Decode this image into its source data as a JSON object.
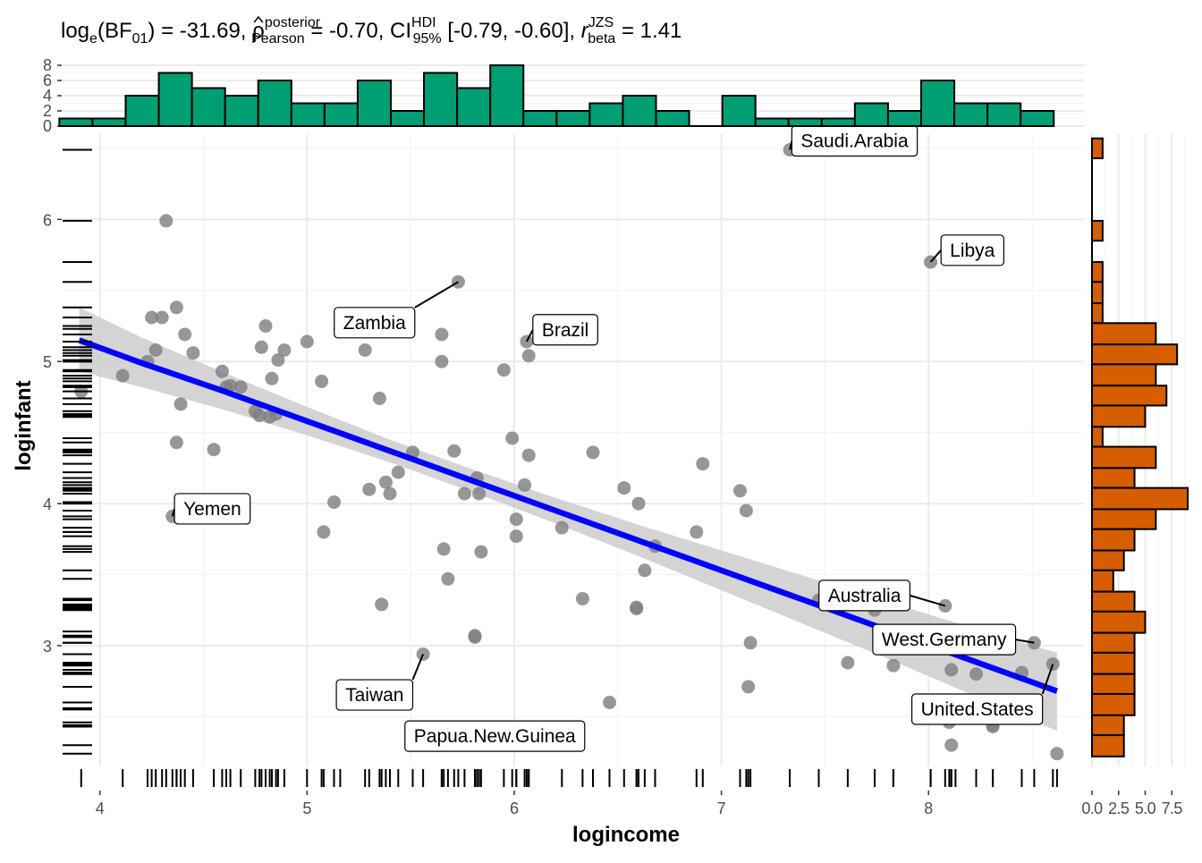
{
  "chart_data": {
    "type": "scatter",
    "title": {
      "logbf_label": "log",
      "logbf_sub": "e",
      "logbf_bf": "BF",
      "logbf_bfsub": "01",
      "logbf_value": " = -31.69, ",
      "rho_symbol": "ρ",
      "rho_sup": "posterior",
      "rho_sub": "Pearson",
      "rho_value": " = -0.70, CI",
      "ci_sup": "HDI",
      "ci_sub": "95%",
      "ci_value": " [-0.79, -0.60], ",
      "r_symbol": "r",
      "r_sup": "JZS",
      "r_sub": "beta",
      "r_value": " = 1.41"
    },
    "xlabel": "logincome",
    "ylabel": "loginfant",
    "xlim": [
      3.82,
      8.75
    ],
    "ylim": [
      2.15,
      6.6
    ],
    "x_ticks": [
      4,
      5,
      6,
      7,
      8
    ],
    "y_ticks": [
      3,
      4,
      5,
      6
    ],
    "grid": true,
    "point_color": "#808080",
    "line_color": "#0000ff",
    "ribbon_color": "#cccccc",
    "fit": {
      "x": [
        3.9,
        4.2,
        4.6,
        5.0,
        5.4,
        5.8,
        6.2,
        6.6,
        7.0,
        7.4,
        7.8,
        8.2,
        8.62
      ],
      "y": [
        5.15,
        4.99,
        4.79,
        4.58,
        4.37,
        4.16,
        3.95,
        3.74,
        3.53,
        3.32,
        3.11,
        2.9,
        2.68
      ],
      "lower": [
        4.93,
        4.82,
        4.66,
        4.48,
        4.29,
        4.08,
        3.86,
        3.63,
        3.39,
        3.15,
        2.91,
        2.66,
        2.4
      ],
      "upper": [
        5.38,
        5.17,
        4.92,
        4.68,
        4.45,
        4.24,
        4.04,
        3.85,
        3.67,
        3.49,
        3.31,
        3.13,
        2.95
      ]
    },
    "points": [
      [
        3.91,
        4.79
      ],
      [
        4.11,
        4.9
      ],
      [
        4.23,
        5.0
      ],
      [
        4.25,
        5.31
      ],
      [
        4.27,
        5.08
      ],
      [
        4.3,
        5.31
      ],
      [
        4.32,
        5.99
      ],
      [
        4.35,
        3.91
      ],
      [
        4.37,
        5.38
      ],
      [
        4.37,
        4.43
      ],
      [
        4.39,
        4.7
      ],
      [
        4.41,
        5.19
      ],
      [
        4.45,
        5.06
      ],
      [
        4.55,
        4.38
      ],
      [
        4.59,
        4.93
      ],
      [
        4.61,
        4.82
      ],
      [
        4.63,
        4.83
      ],
      [
        4.68,
        4.82
      ],
      [
        4.75,
        4.65
      ],
      [
        4.77,
        4.62
      ],
      [
        4.78,
        5.1
      ],
      [
        4.8,
        5.25
      ],
      [
        4.82,
        4.61
      ],
      [
        4.83,
        4.88
      ],
      [
        4.85,
        4.63
      ],
      [
        4.86,
        5.01
      ],
      [
        4.89,
        5.08
      ],
      [
        5.0,
        5.14
      ],
      [
        5.07,
        4.86
      ],
      [
        5.08,
        3.8
      ],
      [
        5.13,
        4.01
      ],
      [
        5.16,
        5.23
      ],
      [
        5.28,
        5.08
      ],
      [
        5.3,
        4.1
      ],
      [
        5.35,
        4.74
      ],
      [
        5.36,
        3.29
      ],
      [
        5.38,
        4.15
      ],
      [
        5.4,
        4.07
      ],
      [
        5.44,
        4.22
      ],
      [
        5.51,
        4.36
      ],
      [
        5.56,
        2.94
      ],
      [
        5.65,
        5.0
      ],
      [
        5.65,
        5.19
      ],
      [
        5.66,
        3.68
      ],
      [
        5.68,
        3.47
      ],
      [
        5.71,
        4.37
      ],
      [
        5.73,
        5.56
      ],
      [
        5.76,
        4.07
      ],
      [
        5.81,
        3.07
      ],
      [
        5.81,
        3.06
      ],
      [
        5.82,
        4.18
      ],
      [
        5.83,
        4.07
      ],
      [
        5.84,
        3.66
      ],
      [
        5.95,
        4.94
      ],
      [
        5.99,
        4.46
      ],
      [
        6.01,
        3.89
      ],
      [
        6.01,
        3.77
      ],
      [
        6.05,
        4.13
      ],
      [
        6.06,
        5.14
      ],
      [
        6.07,
        5.04
      ],
      [
        6.07,
        4.34
      ],
      [
        6.23,
        3.83
      ],
      [
        6.33,
        3.33
      ],
      [
        6.38,
        4.36
      ],
      [
        6.46,
        2.6
      ],
      [
        6.53,
        4.11
      ],
      [
        6.59,
        3.27
      ],
      [
        6.59,
        3.26
      ],
      [
        6.6,
        4.0
      ],
      [
        6.63,
        3.53
      ],
      [
        6.68,
        3.7
      ],
      [
        6.88,
        3.8
      ],
      [
        6.91,
        4.28
      ],
      [
        7.09,
        4.09
      ],
      [
        7.12,
        3.95
      ],
      [
        7.13,
        2.71
      ],
      [
        7.14,
        3.02
      ],
      [
        7.33,
        6.49
      ],
      [
        7.47,
        3.32
      ],
      [
        7.61,
        2.88
      ],
      [
        7.74,
        3.25
      ],
      [
        7.83,
        2.86
      ],
      [
        7.83,
        3.1
      ],
      [
        8.01,
        5.7
      ],
      [
        8.01,
        2.55
      ],
      [
        8.08,
        3.28
      ],
      [
        8.1,
        2.46
      ],
      [
        8.11,
        2.83
      ],
      [
        8.11,
        2.3
      ],
      [
        8.13,
        2.56
      ],
      [
        8.23,
        2.8
      ],
      [
        8.31,
        2.44
      ],
      [
        8.31,
        2.43
      ],
      [
        8.45,
        2.81
      ],
      [
        8.51,
        3.02
      ],
      [
        8.6,
        2.87
      ],
      [
        8.62,
        2.24
      ]
    ],
    "labels": [
      {
        "text": "Saudi.Arabia",
        "x": 7.33,
        "y": 6.49,
        "lx": 7.34,
        "ly": 6.66,
        "anchor": "left"
      },
      {
        "text": "Libya",
        "x": 8.01,
        "y": 5.7,
        "lx": 8.06,
        "ly": 5.89,
        "anchor": "left"
      },
      {
        "text": "Zambia",
        "x": 5.73,
        "y": 5.56,
        "lx": 5.52,
        "ly": 5.38,
        "anchor": "right"
      },
      {
        "text": "Brazil",
        "x": 6.06,
        "y": 5.14,
        "lx": 6.09,
        "ly": 5.33,
        "anchor": "left"
      },
      {
        "text": "Yemen",
        "x": 4.35,
        "y": 3.91,
        "lx": 4.36,
        "ly": 4.07,
        "anchor": "left"
      },
      {
        "text": "Australia",
        "x": 8.08,
        "y": 3.28,
        "lx": 7.91,
        "ly": 3.46,
        "anchor": "right"
      },
      {
        "text": "West.Germany",
        "x": 8.51,
        "y": 3.02,
        "lx": 8.42,
        "ly": 3.15,
        "anchor": "right"
      },
      {
        "text": "Taiwan",
        "x": 5.56,
        "y": 2.94,
        "lx": 5.51,
        "ly": 2.76,
        "anchor": "right"
      },
      {
        "text": "United.States",
        "x": 8.6,
        "y": 2.87,
        "lx": 8.55,
        "ly": 2.66,
        "anchor": "right"
      },
      {
        "text": "Papua.New.Guinea",
        "x": 6.18,
        "y": 2.3,
        "lx": 6.34,
        "ly": 2.47,
        "anchor": "right"
      }
    ],
    "x_hist": {
      "color": "#009e73",
      "y_ticks": [
        0,
        2,
        4,
        6,
        8
      ],
      "ymax": 8,
      "bins": [
        {
          "x0": 3.8,
          "x1": 3.96,
          "count": 1
        },
        {
          "x0": 3.96,
          "x1": 4.12,
          "count": 1
        },
        {
          "x0": 4.12,
          "x1": 4.28,
          "count": 4
        },
        {
          "x0": 4.28,
          "x1": 4.44,
          "count": 7
        },
        {
          "x0": 4.44,
          "x1": 4.6,
          "count": 5
        },
        {
          "x0": 4.6,
          "x1": 4.76,
          "count": 4
        },
        {
          "x0": 4.76,
          "x1": 4.92,
          "count": 6
        },
        {
          "x0": 4.92,
          "x1": 5.08,
          "count": 3
        },
        {
          "x0": 5.08,
          "x1": 5.24,
          "count": 3
        },
        {
          "x0": 5.24,
          "x1": 5.4,
          "count": 6
        },
        {
          "x0": 5.4,
          "x1": 5.56,
          "count": 2
        },
        {
          "x0": 5.56,
          "x1": 5.72,
          "count": 7
        },
        {
          "x0": 5.72,
          "x1": 5.88,
          "count": 5
        },
        {
          "x0": 5.88,
          "x1": 6.04,
          "count": 8
        },
        {
          "x0": 6.04,
          "x1": 6.2,
          "count": 2
        },
        {
          "x0": 6.2,
          "x1": 6.36,
          "count": 2
        },
        {
          "x0": 6.36,
          "x1": 6.52,
          "count": 3
        },
        {
          "x0": 6.52,
          "x1": 6.68,
          "count": 4
        },
        {
          "x0": 6.68,
          "x1": 6.84,
          "count": 2
        },
        {
          "x0": 6.84,
          "x1": 7.0,
          "count": 0
        },
        {
          "x0": 7.0,
          "x1": 7.16,
          "count": 4
        },
        {
          "x0": 7.16,
          "x1": 7.32,
          "count": 1
        },
        {
          "x0": 7.32,
          "x1": 7.48,
          "count": 1
        },
        {
          "x0": 7.48,
          "x1": 7.64,
          "count": 1
        },
        {
          "x0": 7.64,
          "x1": 7.8,
          "count": 3
        },
        {
          "x0": 7.8,
          "x1": 7.96,
          "count": 2
        },
        {
          "x0": 7.96,
          "x1": 8.12,
          "count": 6
        },
        {
          "x0": 8.12,
          "x1": 8.28,
          "count": 3
        },
        {
          "x0": 8.28,
          "x1": 8.44,
          "count": 3
        },
        {
          "x0": 8.44,
          "x1": 8.6,
          "count": 2
        }
      ]
    },
    "y_hist": {
      "color": "#d55e00",
      "x_tick_labels": [
        "0.0",
        "2.5",
        "5.0",
        "7.5"
      ],
      "x_ticks": [
        0,
        2.5,
        5.0,
        7.5
      ],
      "xmax": 9.5,
      "bins": [
        {
          "y0": 6.43,
          "y1": 6.57,
          "count": 1
        },
        {
          "y0": 6.29,
          "y1": 6.43,
          "count": 0
        },
        {
          "y0": 6.14,
          "y1": 6.29,
          "count": 0
        },
        {
          "y0": 5.99,
          "y1": 6.14,
          "count": 0
        },
        {
          "y0": 5.85,
          "y1": 5.99,
          "count": 1
        },
        {
          "y0": 5.7,
          "y1": 5.85,
          "count": 0
        },
        {
          "y0": 5.56,
          "y1": 5.7,
          "count": 1
        },
        {
          "y0": 5.41,
          "y1": 5.56,
          "count": 1
        },
        {
          "y0": 5.27,
          "y1": 5.41,
          "count": 1
        },
        {
          "y0": 5.12,
          "y1": 5.27,
          "count": 6
        },
        {
          "y0": 4.98,
          "y1": 5.12,
          "count": 8
        },
        {
          "y0": 4.83,
          "y1": 4.98,
          "count": 6
        },
        {
          "y0": 4.69,
          "y1": 4.83,
          "count": 7
        },
        {
          "y0": 4.54,
          "y1": 4.69,
          "count": 5
        },
        {
          "y0": 4.4,
          "y1": 4.54,
          "count": 1
        },
        {
          "y0": 4.25,
          "y1": 4.4,
          "count": 6
        },
        {
          "y0": 4.11,
          "y1": 4.25,
          "count": 4
        },
        {
          "y0": 3.96,
          "y1": 4.11,
          "count": 9
        },
        {
          "y0": 3.82,
          "y1": 3.96,
          "count": 6
        },
        {
          "y0": 3.67,
          "y1": 3.82,
          "count": 4
        },
        {
          "y0": 3.53,
          "y1": 3.67,
          "count": 3
        },
        {
          "y0": 3.38,
          "y1": 3.53,
          "count": 2
        },
        {
          "y0": 3.24,
          "y1": 3.38,
          "count": 4
        },
        {
          "y0": 3.09,
          "y1": 3.24,
          "count": 5
        },
        {
          "y0": 2.95,
          "y1": 3.09,
          "count": 4
        },
        {
          "y0": 2.8,
          "y1": 2.95,
          "count": 4
        },
        {
          "y0": 2.66,
          "y1": 2.8,
          "count": 4
        },
        {
          "y0": 2.51,
          "y1": 2.66,
          "count": 4
        },
        {
          "y0": 2.37,
          "y1": 2.51,
          "count": 3
        },
        {
          "y0": 2.22,
          "y1": 2.37,
          "count": 3
        }
      ]
    }
  }
}
